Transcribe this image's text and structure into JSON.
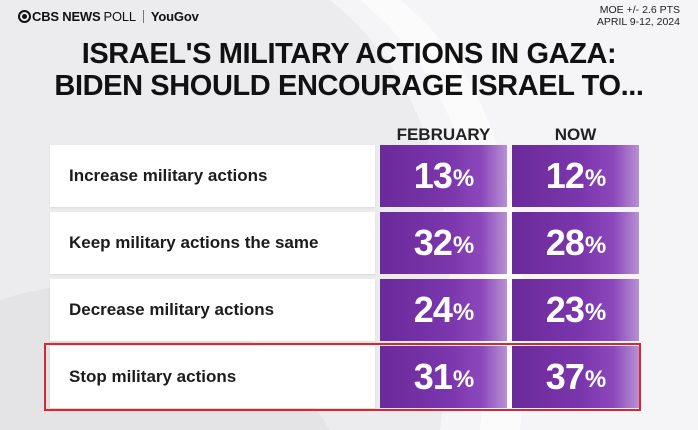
{
  "header": {
    "brand": "CBS NEWS",
    "poll": "POLL",
    "partner": "YouGov",
    "moe": "MOE +/- 2.6 PTS",
    "dates": "APRIL 9-12, 2024"
  },
  "title_line1": "ISRAEL'S MILITARY ACTIONS IN GAZA:",
  "title_line2": "BIDEN SHOULD ENCOURAGE ISRAEL TO...",
  "colors": {
    "accent": "#7b36ad",
    "highlight": "#d7282f"
  },
  "chart_data": {
    "type": "table",
    "title": "ISRAEL'S MILITARY ACTIONS IN GAZA: BIDEN SHOULD ENCOURAGE ISRAEL TO...",
    "columns": [
      "FEBRUARY",
      "NOW"
    ],
    "rows": [
      {
        "label": "Increase military actions",
        "values": [
          "13",
          "12"
        ]
      },
      {
        "label": "Keep military actions the same",
        "values": [
          "32",
          "28"
        ]
      },
      {
        "label": "Decrease military actions",
        "values": [
          "24",
          "23"
        ]
      },
      {
        "label": "Stop military actions",
        "values": [
          "31",
          "37"
        ]
      }
    ],
    "unit": "%",
    "highlighted_row": "Stop military actions"
  }
}
